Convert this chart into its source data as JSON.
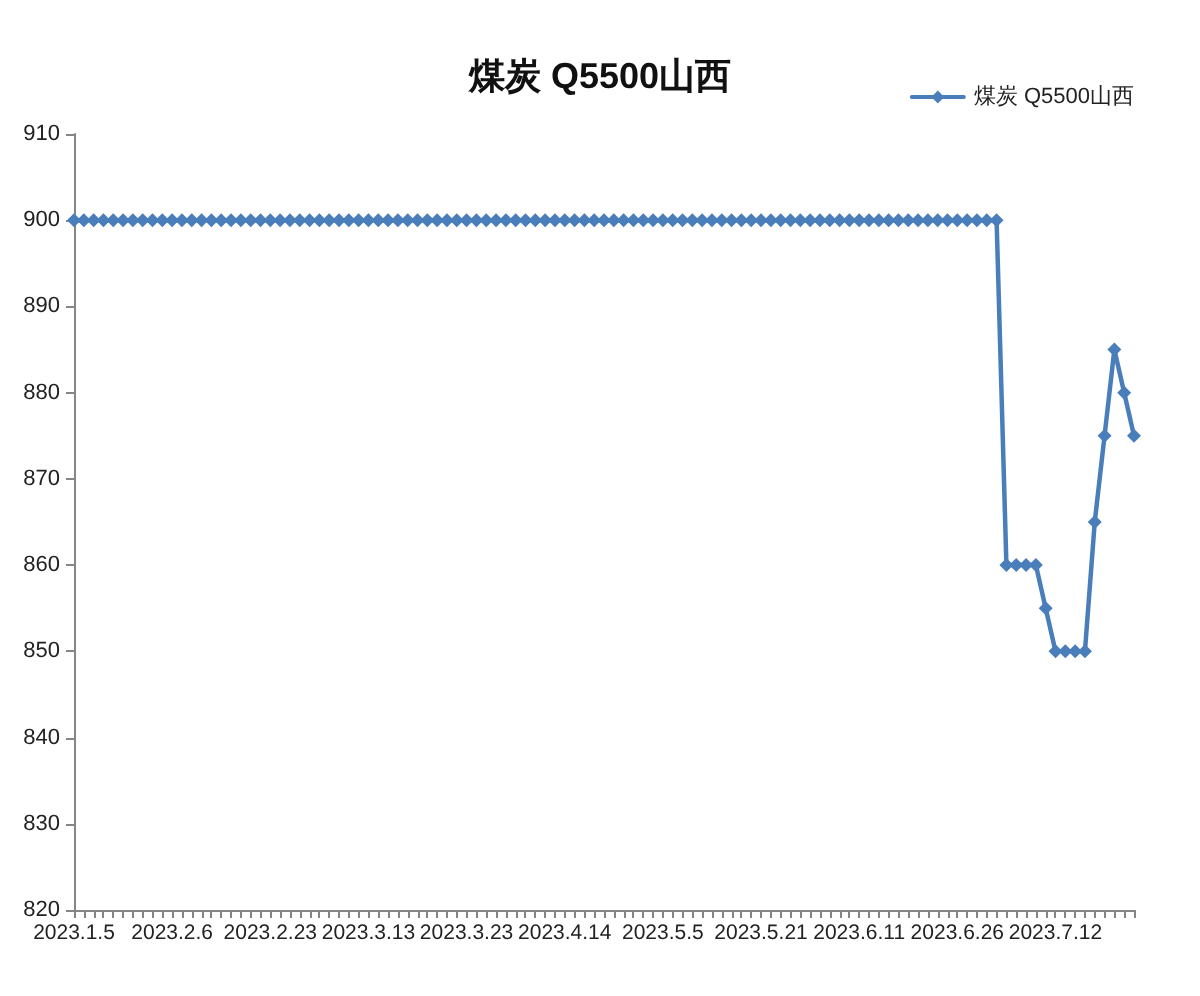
{
  "chart_data": {
    "type": "line",
    "title": "煤炭 Q5500山西",
    "categories": [
      "2023.1.5",
      null,
      null,
      null,
      null,
      null,
      null,
      null,
      null,
      null,
      "2023.2.6",
      null,
      null,
      null,
      null,
      null,
      null,
      null,
      null,
      null,
      "2023.2.23",
      null,
      null,
      null,
      null,
      null,
      null,
      null,
      null,
      null,
      "2023.3.13",
      null,
      null,
      null,
      null,
      null,
      null,
      null,
      null,
      null,
      "2023.3.23",
      null,
      null,
      null,
      null,
      null,
      null,
      null,
      null,
      null,
      "2023.4.14",
      null,
      null,
      null,
      null,
      null,
      null,
      null,
      null,
      null,
      "2023.5.5",
      null,
      null,
      null,
      null,
      null,
      null,
      null,
      null,
      null,
      "2023.5.21",
      null,
      null,
      null,
      null,
      null,
      null,
      null,
      null,
      null,
      "2023.6.11",
      null,
      null,
      null,
      null,
      null,
      null,
      null,
      null,
      null,
      "2023.6.26",
      null,
      null,
      null,
      null,
      null,
      null,
      null,
      null,
      null,
      "2023.7.12",
      null,
      null,
      null,
      null,
      null,
      null,
      null,
      null
    ],
    "series": [
      {
        "name": "煤炭 Q5500山西",
        "color": "#4a7ebb",
        "values": [
          900,
          900,
          900,
          900,
          900,
          900,
          900,
          900,
          900,
          900,
          900,
          900,
          900,
          900,
          900,
          900,
          900,
          900,
          900,
          900,
          900,
          900,
          900,
          900,
          900,
          900,
          900,
          900,
          900,
          900,
          900,
          900,
          900,
          900,
          900,
          900,
          900,
          900,
          900,
          900,
          900,
          900,
          900,
          900,
          900,
          900,
          900,
          900,
          900,
          900,
          900,
          900,
          900,
          900,
          900,
          900,
          900,
          900,
          900,
          900,
          900,
          900,
          900,
          900,
          900,
          900,
          900,
          900,
          900,
          900,
          900,
          900,
          900,
          900,
          900,
          900,
          900,
          900,
          900,
          900,
          900,
          900,
          900,
          900,
          900,
          900,
          900,
          900,
          900,
          900,
          900,
          900,
          900,
          900,
          900,
          860,
          860,
          860,
          860,
          855,
          850,
          850,
          850,
          850,
          865,
          875,
          885,
          880,
          875
        ]
      }
    ],
    "ylim": [
      820,
      910
    ],
    "yticks": [
      820,
      830,
      840,
      850,
      860,
      870,
      880,
      890,
      900,
      910
    ],
    "legend": "top right",
    "marker": "diamond",
    "line_style": "solid"
  }
}
